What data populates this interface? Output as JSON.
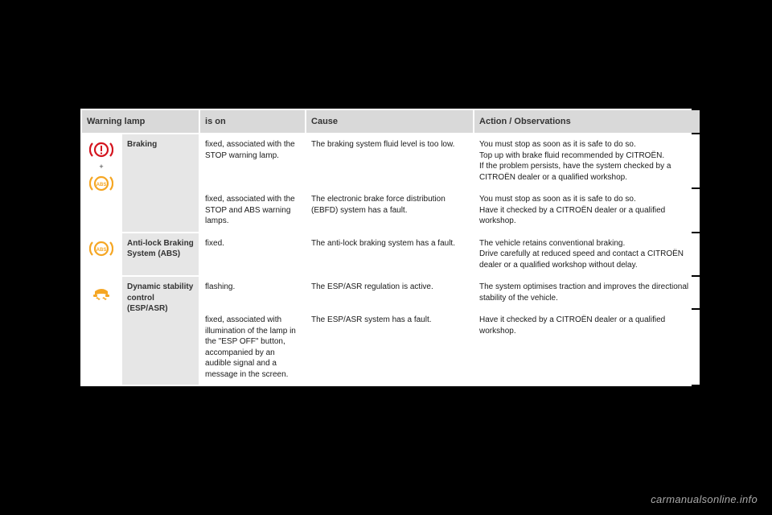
{
  "headers": {
    "col1": "Warning lamp",
    "col2": "is on",
    "col3": "Cause",
    "col4": "Action / Observations"
  },
  "rows": {
    "braking": {
      "name": "Braking",
      "r1": {
        "ison": "fixed, associated with the STOP warning lamp.",
        "cause": "The braking system fluid level is too low.",
        "action": "You must stop as soon as it is safe to do so.\nTop up with brake fluid recommended by CITROËN.\nIf the problem persists, have the system checked by a CITROËN dealer or a qualified workshop."
      },
      "r2": {
        "ison": "fixed, associated with the STOP and ABS warning lamps.",
        "cause": "The electronic brake force distribution (EBFD) system has a fault.",
        "action": "You must stop as soon as it is safe to do so.\nHave it checked by a CITROËN dealer or a qualified workshop."
      }
    },
    "abs": {
      "name": "Anti-lock Braking System (ABS)",
      "ison": "fixed.",
      "cause": "The anti-lock braking system has a fault.",
      "action": "The vehicle retains conventional braking.\nDrive carefully at reduced speed and contact a CITROËN dealer or a qualified workshop without delay."
    },
    "esp": {
      "name": "Dynamic stability control (ESP/ASR)",
      "r1": {
        "ison": "flashing.",
        "cause": "The ESP/ASR regulation is active.",
        "action": "The system optimises traction and improves the directional stability of the vehicle."
      },
      "r2": {
        "ison": "fixed, associated with illumination of the lamp in the \"ESP OFF\" button, accompanied by an audible signal and a message in the screen.",
        "cause": "The ESP/ASR system has a fault.",
        "action": "Have it checked by a CITROËN dealer or a qualified workshop."
      }
    }
  },
  "watermark": "carmanualsonline.info",
  "colors": {
    "brake_red": "#d4141e",
    "abs_amber": "#f5a623",
    "esp_amber": "#f5a623"
  }
}
